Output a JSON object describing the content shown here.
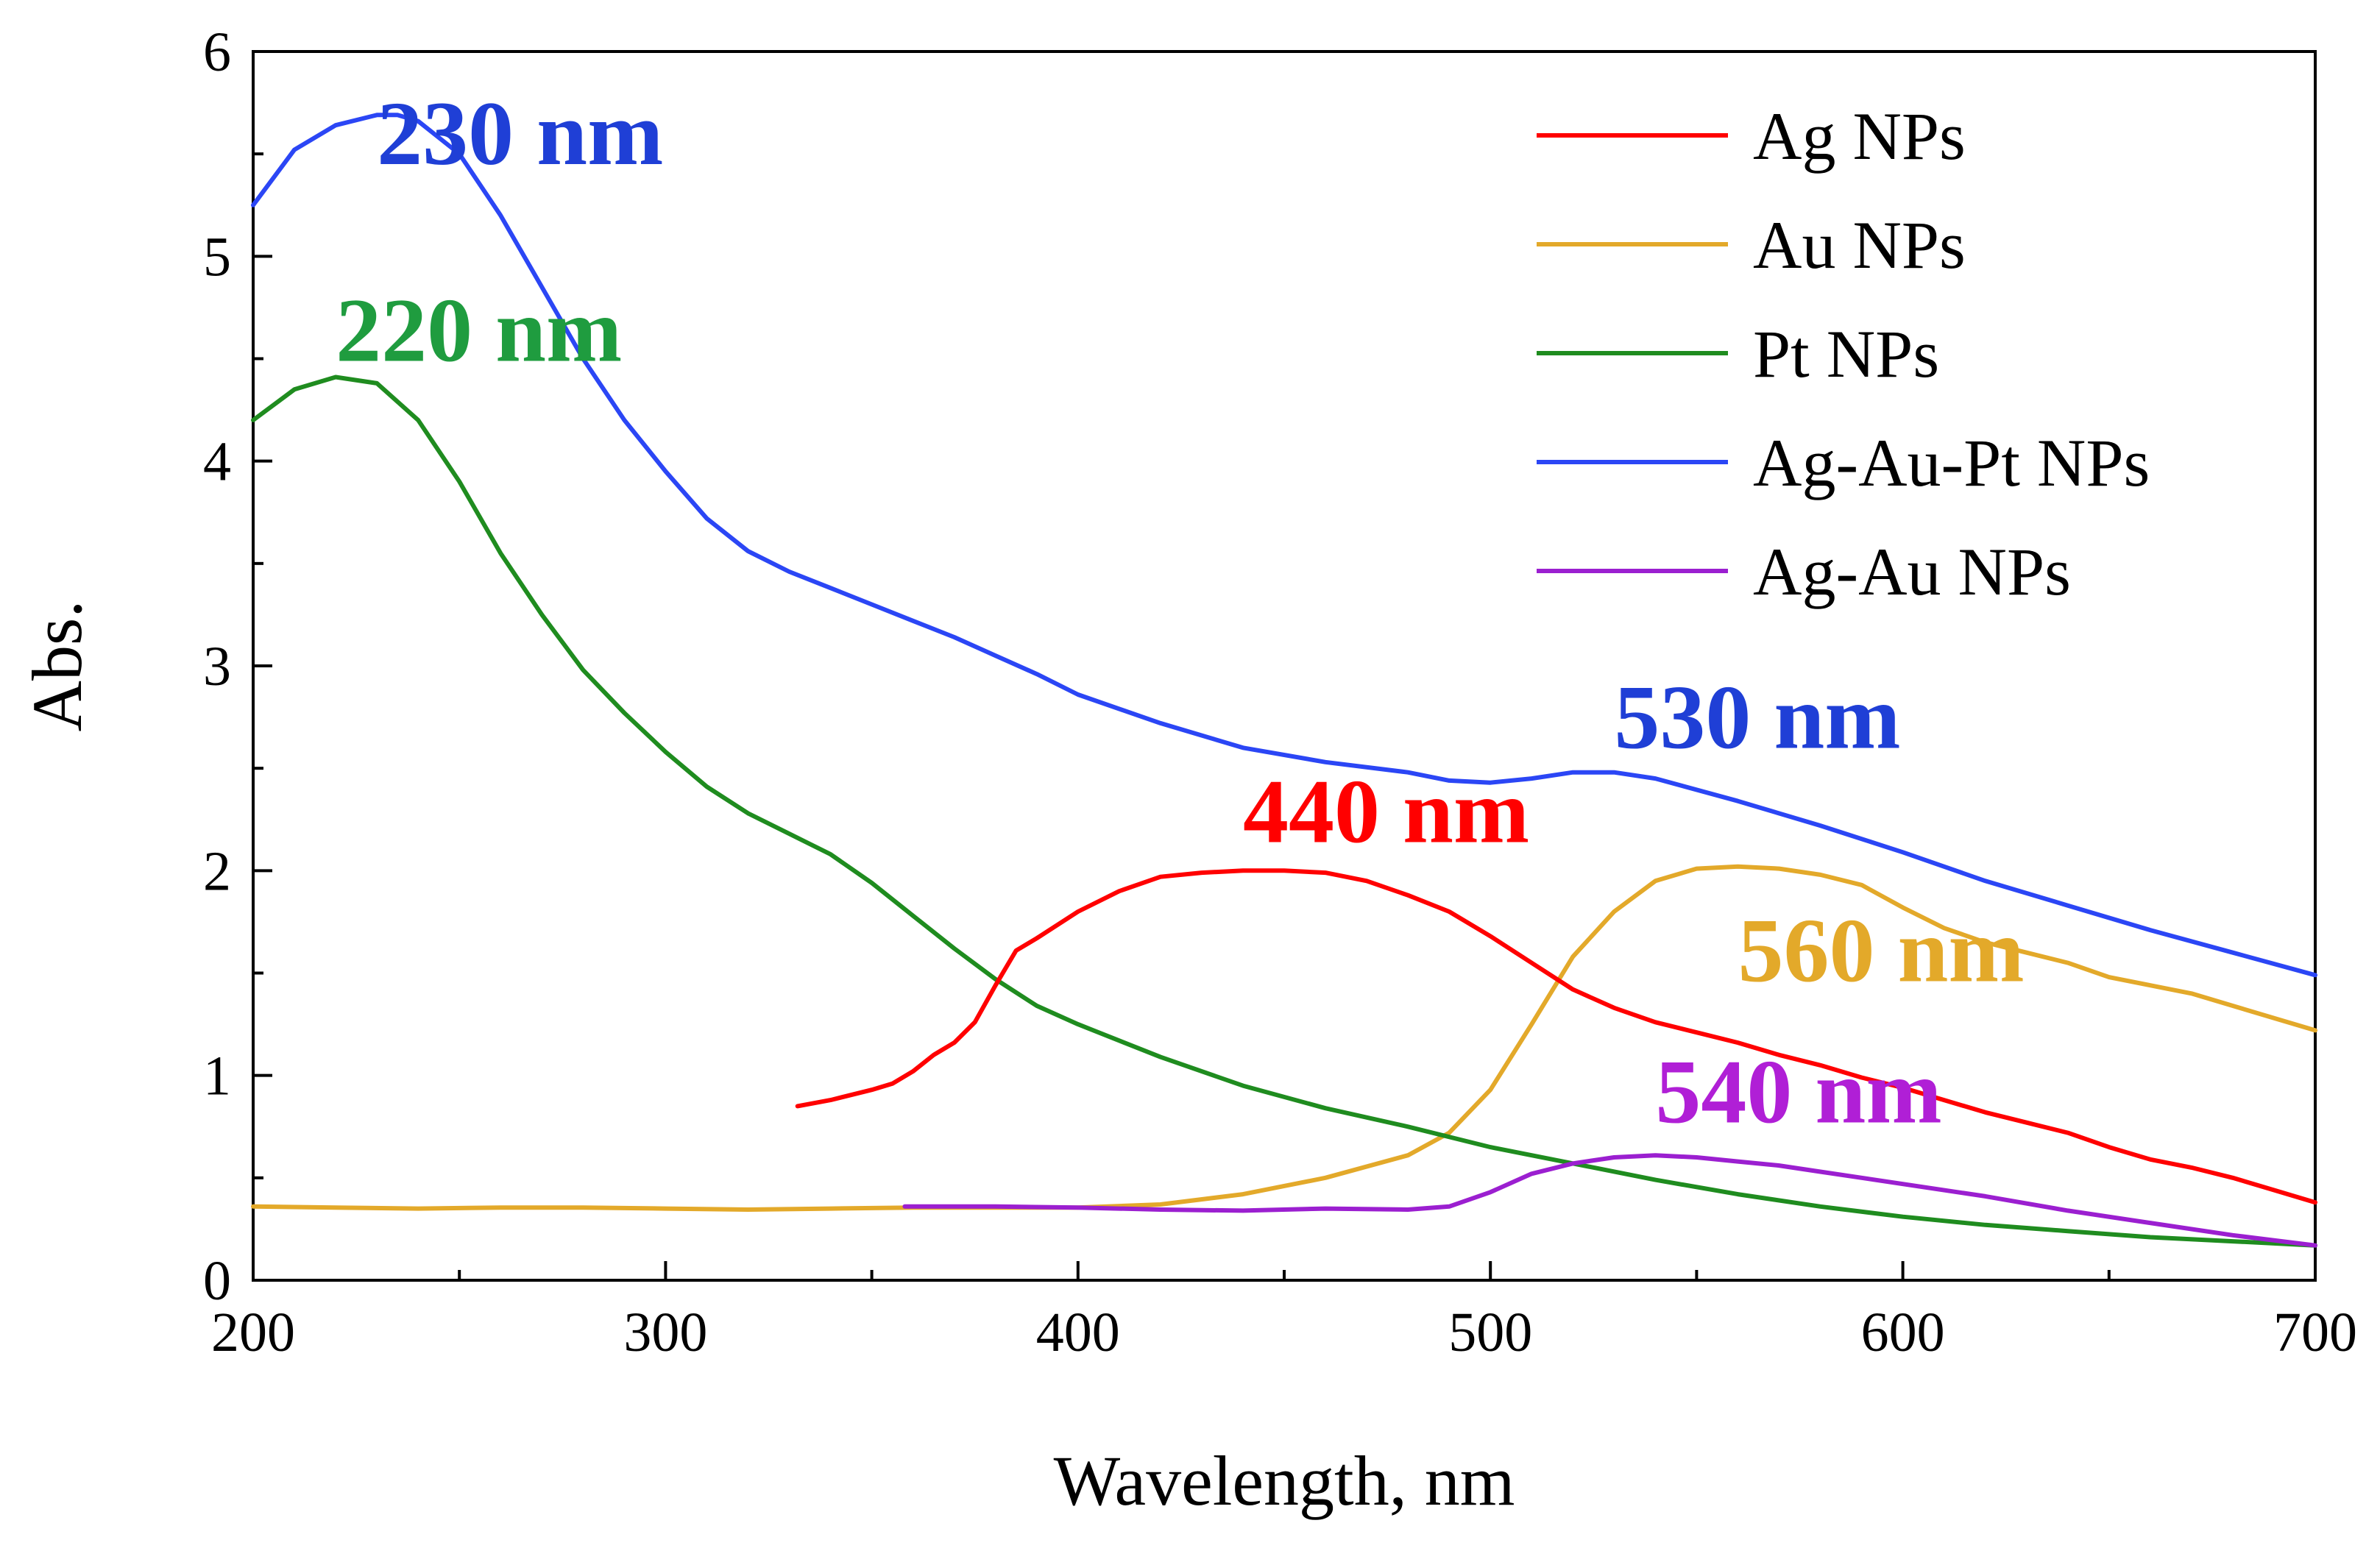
{
  "chart_data": {
    "type": "line",
    "title": "",
    "xlabel": "Wavelength, nm",
    "ylabel": "Abs.",
    "xlim": [
      200,
      700
    ],
    "ylim": [
      0,
      6
    ],
    "x_ticks": [
      "200",
      "300",
      "400",
      "500",
      "600",
      "700"
    ],
    "y_ticks": [
      "0",
      "1",
      "2",
      "3",
      "4",
      "5",
      "6"
    ],
    "grid": false,
    "legend_position": "top-right",
    "series": [
      {
        "name": "Ag NPs",
        "color": "#ff0000",
        "x": [
          332,
          340,
          350,
          355,
          360,
          365,
          370,
          375,
          380,
          385,
          390,
          400,
          410,
          420,
          430,
          440,
          450,
          460,
          470,
          480,
          490,
          500,
          510,
          520,
          530,
          540,
          550,
          560,
          570,
          580,
          590,
          600,
          610,
          620,
          630,
          640,
          650,
          660,
          670,
          680,
          690,
          700
        ],
        "y": [
          0.85,
          0.88,
          0.93,
          0.96,
          1.02,
          1.1,
          1.16,
          1.26,
          1.44,
          1.61,
          1.67,
          1.8,
          1.9,
          1.97,
          1.99,
          2.0,
          2.0,
          1.99,
          1.95,
          1.88,
          1.8,
          1.68,
          1.55,
          1.42,
          1.33,
          1.26,
          1.21,
          1.16,
          1.1,
          1.05,
          0.99,
          0.94,
          0.88,
          0.82,
          0.77,
          0.72,
          0.65,
          0.59,
          0.55,
          0.5,
          0.44,
          0.38
        ]
      },
      {
        "name": "Au NPs",
        "color": "#e3a92a",
        "x": [
          200,
          220,
          240,
          260,
          280,
          300,
          320,
          340,
          360,
          380,
          400,
          420,
          440,
          460,
          480,
          490,
          500,
          510,
          520,
          530,
          540,
          550,
          560,
          570,
          580,
          590,
          600,
          610,
          620,
          630,
          640,
          650,
          660,
          670,
          680,
          690,
          700
        ],
        "y": [
          0.36,
          0.355,
          0.35,
          0.355,
          0.355,
          0.35,
          0.345,
          0.35,
          0.355,
          0.355,
          0.355,
          0.37,
          0.42,
          0.5,
          0.61,
          0.72,
          0.93,
          1.25,
          1.58,
          1.8,
          1.95,
          2.01,
          2.02,
          2.01,
          1.98,
          1.93,
          1.82,
          1.72,
          1.65,
          1.6,
          1.55,
          1.48,
          1.44,
          1.4,
          1.34,
          1.28,
          1.22
        ]
      },
      {
        "name": "Pt NPs",
        "color": "#1f8c1f",
        "x": [
          200,
          210,
          220,
          230,
          240,
          250,
          260,
          270,
          280,
          290,
          300,
          310,
          320,
          330,
          340,
          350,
          360,
          370,
          380,
          390,
          400,
          420,
          440,
          460,
          480,
          500,
          520,
          540,
          560,
          580,
          600,
          620,
          640,
          660,
          680,
          700
        ],
        "y": [
          4.2,
          4.35,
          4.41,
          4.38,
          4.2,
          3.9,
          3.55,
          3.25,
          2.98,
          2.77,
          2.58,
          2.41,
          2.28,
          2.18,
          2.08,
          1.94,
          1.78,
          1.62,
          1.47,
          1.34,
          1.25,
          1.09,
          0.95,
          0.84,
          0.75,
          0.65,
          0.57,
          0.49,
          0.42,
          0.36,
          0.31,
          0.27,
          0.24,
          0.21,
          0.19,
          0.17
        ]
      },
      {
        "name": "Ag-Au-Pt NPs",
        "color": "#2b46f5",
        "x": [
          200,
          210,
          220,
          230,
          235,
          240,
          250,
          260,
          270,
          280,
          290,
          300,
          310,
          320,
          330,
          340,
          350,
          360,
          370,
          380,
          390,
          400,
          420,
          440,
          460,
          480,
          490,
          500,
          510,
          520,
          530,
          540,
          560,
          580,
          600,
          620,
          640,
          660,
          680,
          700
        ],
        "y": [
          5.25,
          5.52,
          5.64,
          5.69,
          5.69,
          5.66,
          5.5,
          5.2,
          4.85,
          4.5,
          4.2,
          3.95,
          3.72,
          3.56,
          3.46,
          3.38,
          3.3,
          3.22,
          3.14,
          3.05,
          2.96,
          2.86,
          2.72,
          2.6,
          2.53,
          2.48,
          2.44,
          2.43,
          2.45,
          2.48,
          2.48,
          2.45,
          2.34,
          2.22,
          2.09,
          1.95,
          1.83,
          1.71,
          1.6,
          1.49
        ]
      },
      {
        "name": "Ag-Au NPs",
        "color": "#9b1fd0",
        "x": [
          358,
          380,
          400,
          420,
          440,
          460,
          480,
          490,
          500,
          510,
          520,
          530,
          540,
          550,
          560,
          570,
          580,
          590,
          600,
          620,
          640,
          660,
          680,
          700
        ],
        "y": [
          0.36,
          0.36,
          0.355,
          0.345,
          0.34,
          0.35,
          0.345,
          0.36,
          0.43,
          0.52,
          0.57,
          0.6,
          0.61,
          0.6,
          0.58,
          0.56,
          0.53,
          0.5,
          0.47,
          0.41,
          0.34,
          0.28,
          0.22,
          0.17
        ]
      }
    ],
    "annotations": [
      {
        "text": "230 nm",
        "color": "#1f3fd6",
        "x": 230,
        "y": 5.45
      },
      {
        "text": "220 nm",
        "color": "#1f9c3f",
        "x": 220,
        "y": 4.49
      },
      {
        "text": "530 nm",
        "color": "#1f3fd6",
        "x": 530,
        "y": 2.6
      },
      {
        "text": "440 nm",
        "color": "#ff0000",
        "x": 440,
        "y": 2.14
      },
      {
        "text": "560 nm",
        "color": "#e3a92a",
        "x": 560,
        "y": 1.46
      },
      {
        "text": "540 nm",
        "color": "#b01fd6",
        "x": 540,
        "y": 0.77
      }
    ]
  }
}
